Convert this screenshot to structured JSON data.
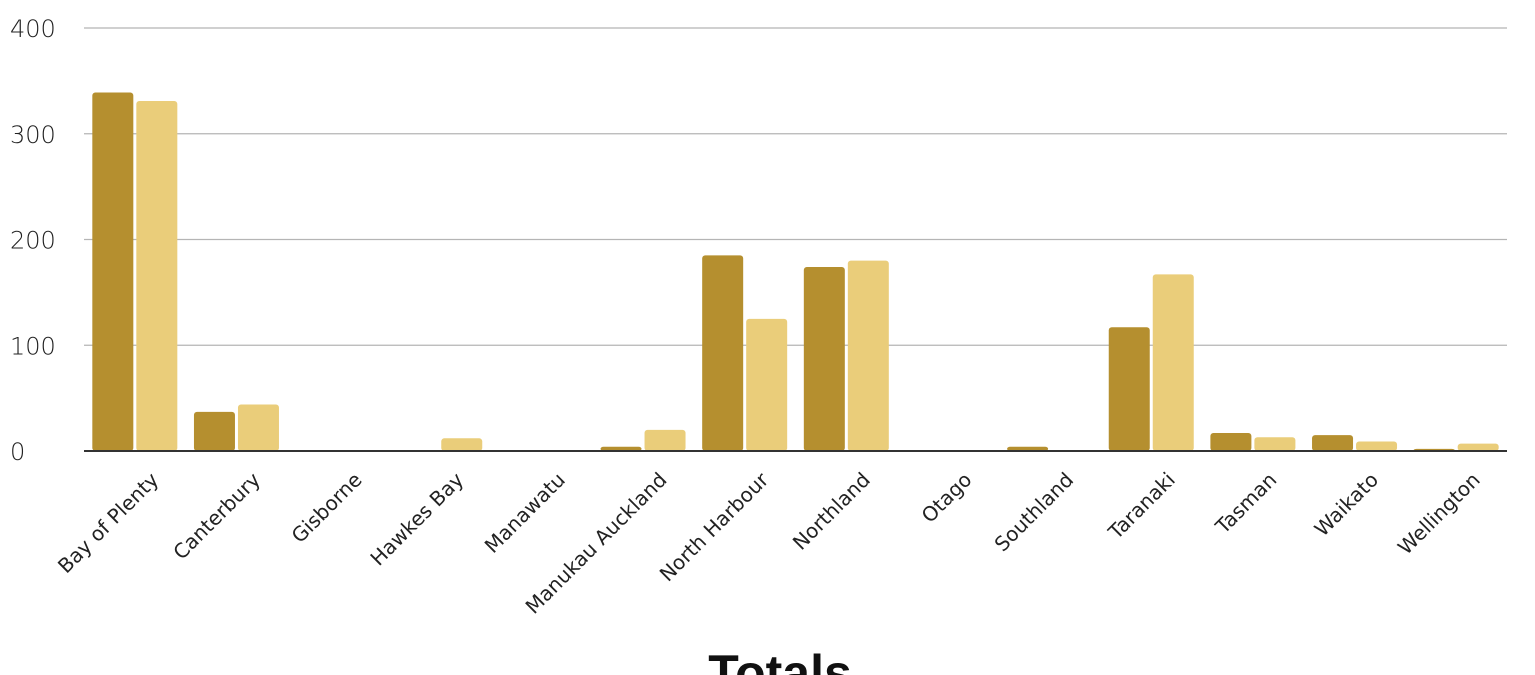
{
  "chart_data": {
    "type": "bar",
    "title": "Totals",
    "xlabel": "",
    "ylabel": "",
    "ylim": [
      0,
      400
    ],
    "yticks": [
      0,
      100,
      200,
      300,
      400
    ],
    "grid": true,
    "categories": [
      "Bay of Plenty",
      "Canterbury",
      "Gisborne",
      "Hawkes Bay",
      "Manawatu",
      "Manukau Auckland",
      "North Harbour",
      "Northland",
      "Otago",
      "Southland",
      "Taranaki",
      "Tasman",
      "Waikato",
      "Wellington"
    ],
    "series": [
      {
        "color": "#b58f2f",
        "values": [
          339,
          37,
          0,
          0,
          0,
          4,
          185,
          174,
          0,
          4,
          117,
          17,
          15,
          2
        ]
      },
      {
        "color": "#eacd7a",
        "values": [
          331,
          44,
          0,
          12,
          0,
          20,
          125,
          180,
          0,
          0,
          167,
          13,
          9,
          7
        ]
      }
    ]
  }
}
